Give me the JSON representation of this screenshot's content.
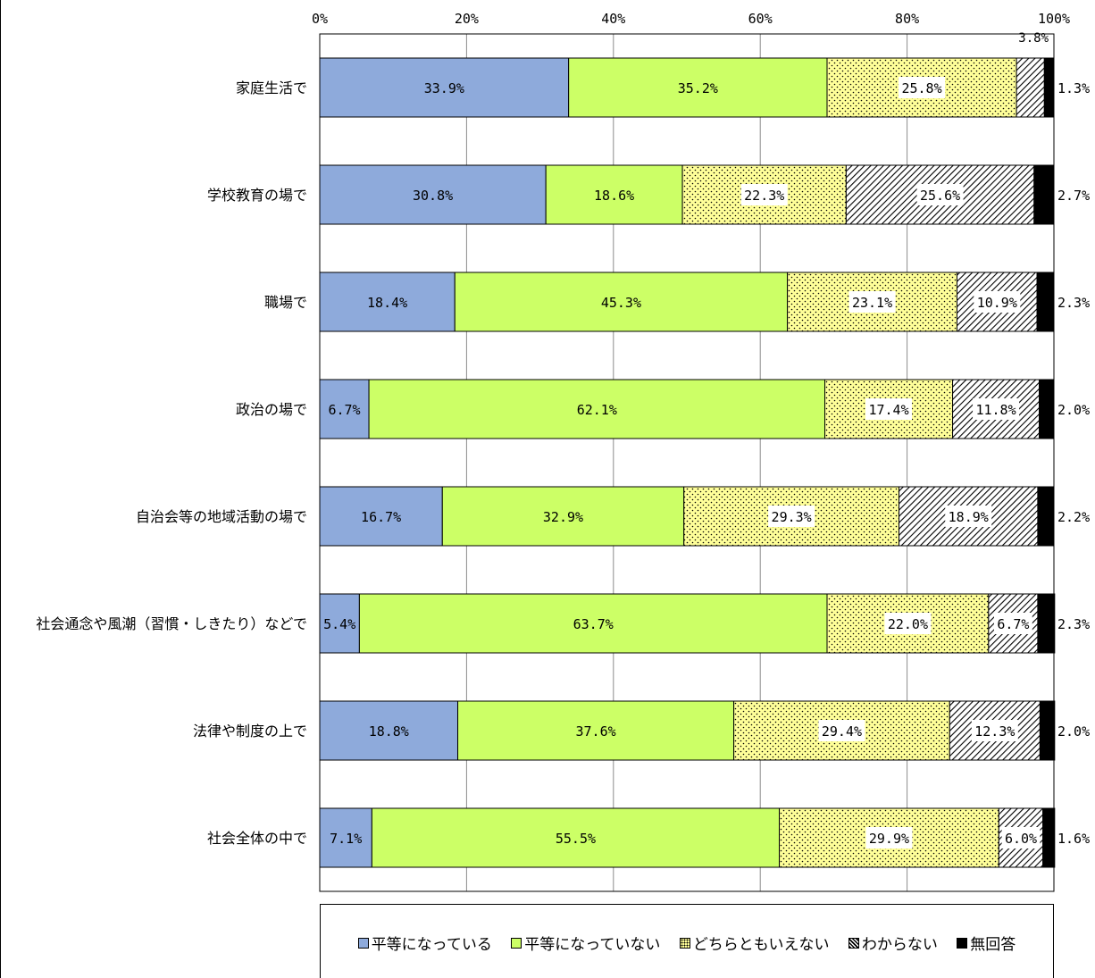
{
  "chart_data": {
    "type": "bar",
    "orientation": "horizontal",
    "stacked": true,
    "categories": [
      "家庭生活で",
      "学校教育の場で",
      "職場で",
      "政治の場で",
      "自治会等の地域活動の場で",
      "社会通念や風潮（習慣・しきたり）などで",
      "法律や制度の上で",
      "社会全体の中で"
    ],
    "series": [
      {
        "name": "平等になっている",
        "color": "#8eaadb",
        "pattern": "solid",
        "values": [
          33.9,
          30.8,
          18.4,
          6.7,
          16.7,
          5.4,
          18.8,
          7.1
        ]
      },
      {
        "name": "平等になっていない",
        "color": "#ccff66",
        "pattern": "solid",
        "values": [
          35.2,
          18.6,
          45.3,
          62.1,
          32.9,
          63.7,
          37.6,
          55.5
        ]
      },
      {
        "name": "どちらともいえない",
        "color": "#ffff99",
        "pattern": "dots",
        "values": [
          25.8,
          22.3,
          23.1,
          17.4,
          29.3,
          22.0,
          29.4,
          29.9
        ]
      },
      {
        "name": "わからない",
        "color": "#ffffff",
        "pattern": "hatch",
        "values": [
          3.8,
          25.6,
          10.9,
          11.8,
          18.9,
          6.7,
          12.3,
          6.0
        ]
      },
      {
        "name": "無回答",
        "color": "#000000",
        "pattern": "solid",
        "values": [
          1.3,
          2.7,
          2.3,
          2.0,
          2.2,
          2.3,
          2.0,
          1.6
        ]
      }
    ],
    "data_labels": [
      [
        "33.9%",
        "35.2%",
        "25.8%",
        "3.8%",
        "1.3%"
      ],
      [
        "30.8%",
        "18.6%",
        "22.3%",
        "25.6%",
        "2.7%"
      ],
      [
        "18.4%",
        "45.3%",
        "23.1%",
        "10.9%",
        "2.3%"
      ],
      [
        "6.7%",
        "62.1%",
        "17.4%",
        "11.8%",
        "2.0%"
      ],
      [
        "16.7%",
        "32.9%",
        "29.3%",
        "18.9%",
        "2.2%"
      ],
      [
        "5.4%",
        "63.7%",
        "22.0%",
        "6.7%",
        "2.3%"
      ],
      [
        "18.8%",
        "37.6%",
        "29.4%",
        "12.3%",
        "2.0%"
      ],
      [
        "7.1%",
        "55.5%",
        "29.9%",
        "6.0%",
        "1.6%"
      ]
    ],
    "x_ticks": [
      "0%",
      "20%",
      "40%",
      "60%",
      "80%",
      "100%"
    ],
    "xlim": [
      0,
      100
    ],
    "grid": true,
    "legend_position": "bottom",
    "title": "",
    "xlabel": "",
    "ylabel": ""
  },
  "legend": {
    "items": [
      {
        "label": "平等になっている",
        "color": "#8eaadb",
        "pattern": "solid"
      },
      {
        "label": "平等になっていない",
        "color": "#ccff66",
        "pattern": "solid"
      },
      {
        "label": "どちらともいえない",
        "color": "#ffff99",
        "pattern": "dots"
      },
      {
        "label": "わからない",
        "color": "#ffffff",
        "pattern": "hatch"
      },
      {
        "label": "無回答",
        "color": "#000000",
        "pattern": "solid"
      }
    ]
  }
}
